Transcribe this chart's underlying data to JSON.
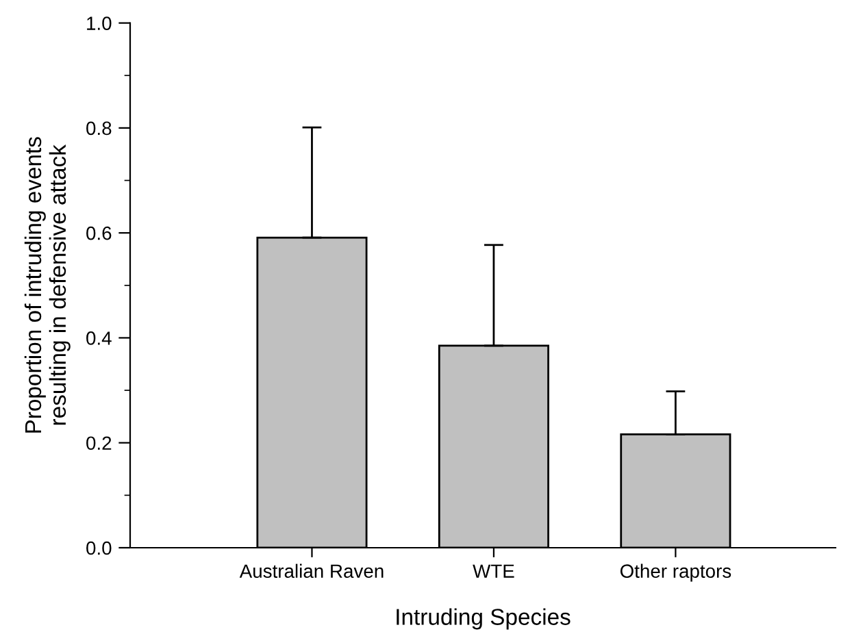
{
  "chart_data": {
    "type": "bar",
    "xlabel": "Intruding Species",
    "ylabel": "Proportion of intruding events\nresulting in defensive attack",
    "categories": [
      "Australian Raven",
      "WTE",
      "Other raptors"
    ],
    "values": [
      0.591,
      0.385,
      0.216
    ],
    "errors": [
      [
        0.591,
        0.801
      ],
      [
        0.385,
        0.577
      ],
      [
        0.216,
        0.298
      ]
    ],
    "color": "#c0c0c0",
    "ylim": [
      0.0,
      1.0
    ],
    "yticks": [
      {
        "value": 0.0,
        "label": "0.0"
      },
      {
        "value": 0.1,
        "label": null
      },
      {
        "value": 0.2,
        "label": "0.2"
      },
      {
        "value": 0.3,
        "label": null
      },
      {
        "value": 0.4,
        "label": "0.4"
      },
      {
        "value": 0.5,
        "label": null
      },
      {
        "value": 0.6,
        "label": "0.6"
      },
      {
        "value": 0.7,
        "label": null
      },
      {
        "value": 0.8,
        "label": "0.8"
      },
      {
        "value": 0.9,
        "label": null
      },
      {
        "value": 1.0,
        "label": "1.0"
      }
    ],
    "grid": false
  }
}
